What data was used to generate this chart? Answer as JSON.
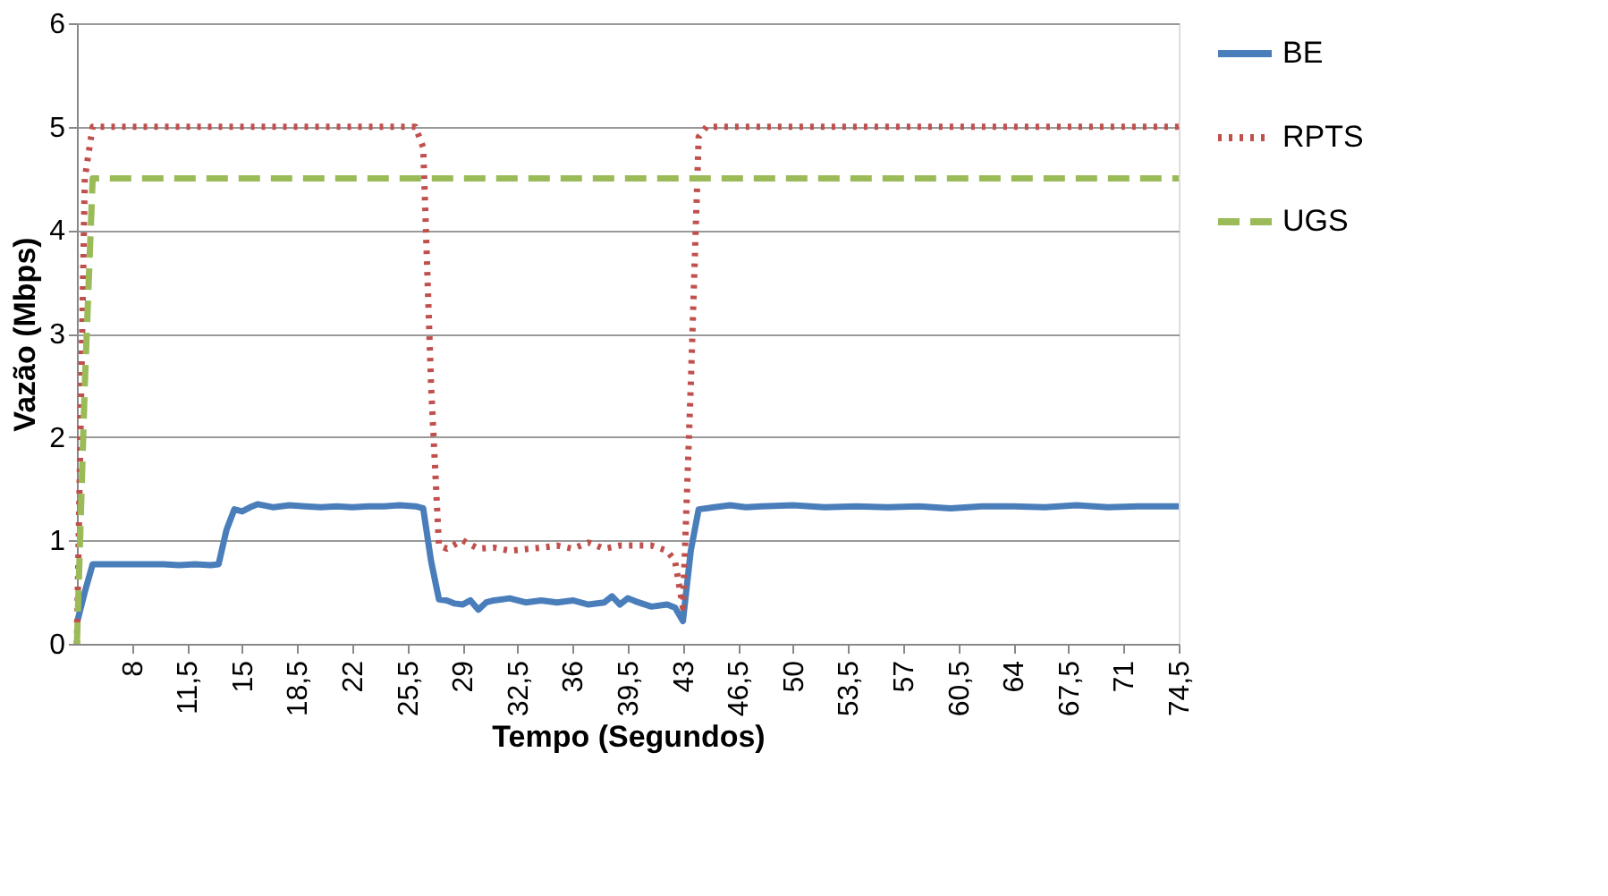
{
  "chart_data": {
    "type": "line",
    "xlabel": "Tempo (Segundos)",
    "ylabel": "Vazão (Mbps)",
    "xlim": [
      4.5,
      74.5
    ],
    "xticks": [
      8,
      {
        "value": 11.5,
        "label": "11,5"
      },
      15,
      {
        "value": 18.5,
        "label": "18,5"
      },
      22,
      {
        "value": 25.5,
        "label": "25,5"
      },
      29,
      {
        "value": 32.5,
        "label": "32,5"
      },
      36,
      {
        "value": 39.5,
        "label": "39,5"
      },
      43,
      {
        "value": 46.5,
        "label": "46,5"
      },
      50,
      {
        "value": 53.5,
        "label": "53,5"
      },
      57,
      {
        "value": 60.5,
        "label": "60,5"
      },
      64,
      {
        "value": 67.5,
        "label": "67,5"
      },
      71,
      {
        "value": 74.5,
        "label": "74,5"
      }
    ],
    "ylim": [
      0,
      6
    ],
    "yticks": [
      0,
      1,
      2,
      3,
      4,
      5,
      6
    ],
    "grid": "y",
    "legend": "right",
    "marker": "none",
    "series": [
      {
        "name": "BE",
        "color": "#4a7ebb",
        "line_style": "solid",
        "x": [
          4.5,
          5,
          5.5,
          8,
          10,
          11,
          12,
          13,
          13.5,
          14,
          14.5,
          15,
          15.5,
          16,
          17,
          18,
          19,
          20,
          21,
          22,
          23,
          24,
          25,
          26,
          26.5,
          27,
          27.5,
          28,
          28.5,
          29,
          29.5,
          30,
          30.5,
          31,
          32,
          33,
          34,
          35,
          36,
          37,
          38,
          38.5,
          39,
          39.5,
          40,
          41,
          42,
          42.5,
          43,
          43.5,
          44,
          45,
          46,
          47,
          48,
          50,
          52,
          54,
          56,
          58,
          60,
          62,
          64,
          66,
          68,
          70,
          72,
          74.5
        ],
        "values": [
          0.2,
          0.5,
          0.77,
          0.77,
          0.77,
          0.76,
          0.77,
          0.76,
          0.77,
          1.1,
          1.3,
          1.28,
          1.32,
          1.35,
          1.32,
          1.34,
          1.33,
          1.32,
          1.33,
          1.32,
          1.33,
          1.33,
          1.34,
          1.33,
          1.31,
          0.8,
          0.43,
          0.42,
          0.39,
          0.38,
          0.42,
          0.33,
          0.4,
          0.42,
          0.44,
          0.4,
          0.42,
          0.4,
          0.42,
          0.38,
          0.4,
          0.46,
          0.38,
          0.44,
          0.41,
          0.36,
          0.38,
          0.35,
          0.22,
          0.9,
          1.3,
          1.32,
          1.34,
          1.32,
          1.33,
          1.34,
          1.32,
          1.33,
          1.32,
          1.33,
          1.31,
          1.33,
          1.33,
          1.32,
          1.34,
          1.32,
          1.33,
          1.33
        ]
      },
      {
        "name": "RPTS",
        "color": "#c0504d",
        "line_style": "dotted",
        "x": [
          4.5,
          5,
          5.5,
          26,
          26.5,
          27,
          27.5,
          28,
          29,
          30,
          31,
          32,
          34,
          35,
          36,
          37,
          38,
          39,
          40,
          41,
          42,
          42.5,
          43,
          43.5,
          44,
          44.5,
          74.5
        ],
        "values": [
          0,
          4.5,
          5,
          5,
          4.8,
          2.5,
          0.95,
          0.92,
          1.0,
          0.92,
          0.93,
          0.9,
          0.93,
          0.95,
          0.92,
          0.98,
          0.92,
          0.95,
          0.95,
          0.95,
          0.9,
          0.8,
          0.35,
          2.5,
          4.9,
          5,
          5
        ]
      },
      {
        "name": "UGS",
        "color": "#9bbb59",
        "line_style": "dashed",
        "x": [
          4.5,
          5,
          5.5,
          74.5
        ],
        "values": [
          0,
          2.5,
          4.5,
          4.5
        ]
      }
    ]
  }
}
